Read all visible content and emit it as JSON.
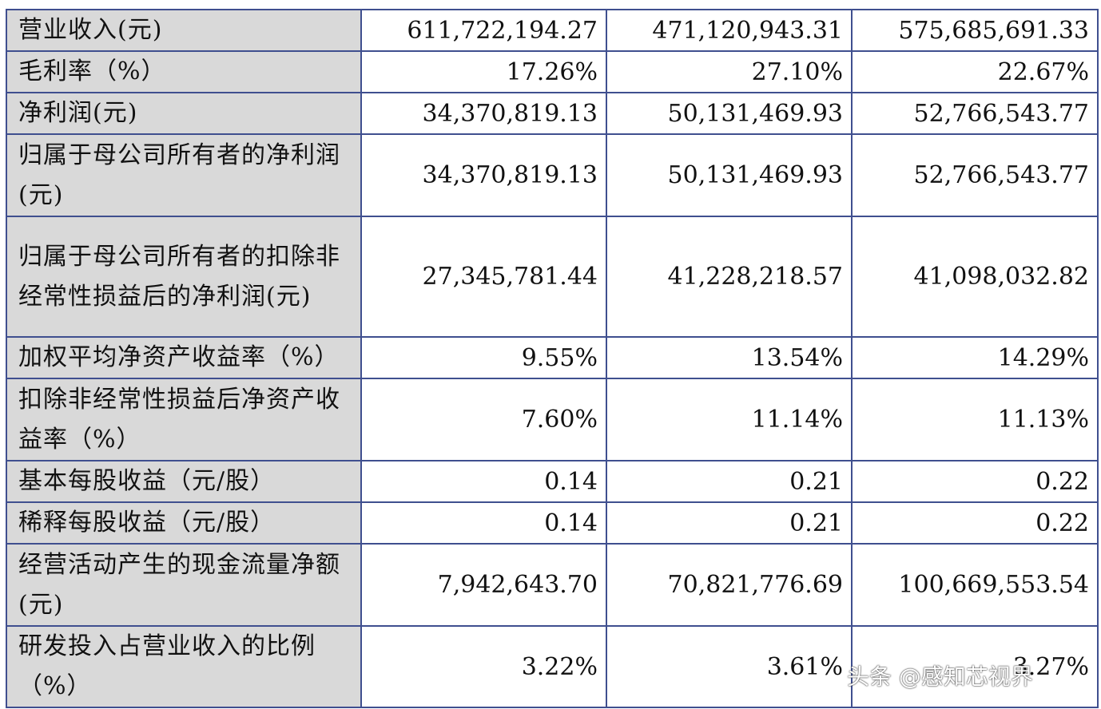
{
  "table": {
    "rows": [
      {
        "label": "营业收入(元)",
        "values": [
          "611,722,194.27",
          "471,120,943.31",
          "575,685,691.33"
        ]
      },
      {
        "label": "毛利率（%）",
        "values": [
          "17.26%",
          "27.10%",
          "22.67%"
        ]
      },
      {
        "label": "净利润(元)",
        "values": [
          "34,370,819.13",
          "50,131,469.93",
          "52,766,543.77"
        ]
      },
      {
        "label": "归属于母公司所有者的净利润(元)",
        "values": [
          "34,370,819.13",
          "50,131,469.93",
          "52,766,543.77"
        ]
      },
      {
        "label": "归属于母公司所有者的扣除非经常性损益后的净利润(元)",
        "values": [
          "27,345,781.44",
          "41,228,218.57",
          "41,098,032.82"
        ]
      },
      {
        "label": "加权平均净资产收益率（%）",
        "values": [
          "9.55%",
          "13.54%",
          "14.29%"
        ]
      },
      {
        "label": "扣除非经常性损益后净资产收益率（%）",
        "values": [
          "7.60%",
          "11.14%",
          "11.13%"
        ]
      },
      {
        "label": "基本每股收益（元/股）",
        "values": [
          "0.14",
          "0.21",
          "0.22"
        ]
      },
      {
        "label": "稀释每股收益（元/股）",
        "values": [
          "0.14",
          "0.21",
          "0.22"
        ]
      },
      {
        "label": "经营活动产生的现金流量净额(元)",
        "values": [
          "7,942,643.70",
          "70,821,776.69",
          "100,669,553.54"
        ]
      },
      {
        "label": "研发投入占营业收入的比例（%）",
        "values": [
          "3.22%",
          "3.61%",
          "3.27%"
        ]
      }
    ]
  },
  "watermark": "头条 @感知芯视界"
}
